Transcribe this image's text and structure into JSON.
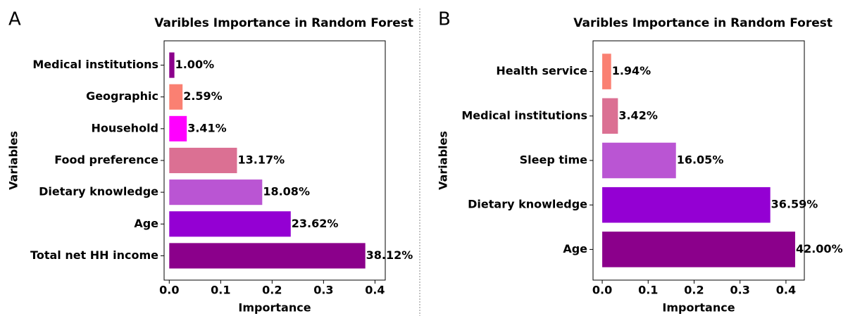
{
  "chart_data": [
    {
      "type": "bar",
      "orientation": "horizontal",
      "panel": "A",
      "title": "Varibles Importance in Random Forest",
      "x_label": "Importance",
      "y_label": "Variables",
      "categories": [
        "Medical institutions",
        "Geographic",
        "Household",
        "Food preference",
        "Dietary knowledge",
        "Age",
        "Total net HH income"
      ],
      "values": [
        0.01,
        0.0259,
        0.0341,
        0.1317,
        0.1808,
        0.2362,
        0.3812
      ],
      "value_labels": [
        "1.00%",
        "2.59%",
        "3.41%",
        "13.17%",
        "18.08%",
        "23.62%",
        "38.12%"
      ],
      "colors": [
        "#8b008b",
        "#fa8072",
        "#ff00ff",
        "#db7093",
        "#ba55d3",
        "#9400d3",
        "#8b008b"
      ],
      "xlim": [
        -0.01,
        0.42
      ],
      "xticks": [
        {
          "value": 0,
          "label": "0.0"
        },
        0.1,
        0.2,
        0.3,
        0.4
      ]
    },
    {
      "type": "bar",
      "orientation": "horizontal",
      "panel": "B",
      "title": "Varibles Importance in Random Forest",
      "x_label": "Importance",
      "y_label": "Variables",
      "categories": [
        "Health service",
        "Medical institutions",
        "Sleep time",
        "Dietary knowledge",
        "Age"
      ],
      "values": [
        0.0194,
        0.0342,
        0.1605,
        0.3659,
        0.42
      ],
      "value_labels": [
        "1.94%",
        "3.42%",
        "16.05%",
        "36.59%",
        "42.00%"
      ],
      "colors": [
        "#fa8072",
        "#db7093",
        "#ba55d3",
        "#9400d3",
        "#8b008b"
      ],
      "xlim": [
        -0.02,
        0.44
      ],
      "xticks": [
        {
          "value": 0,
          "label": "0.0"
        },
        0.1,
        0.2,
        0.3,
        0.4
      ]
    }
  ]
}
